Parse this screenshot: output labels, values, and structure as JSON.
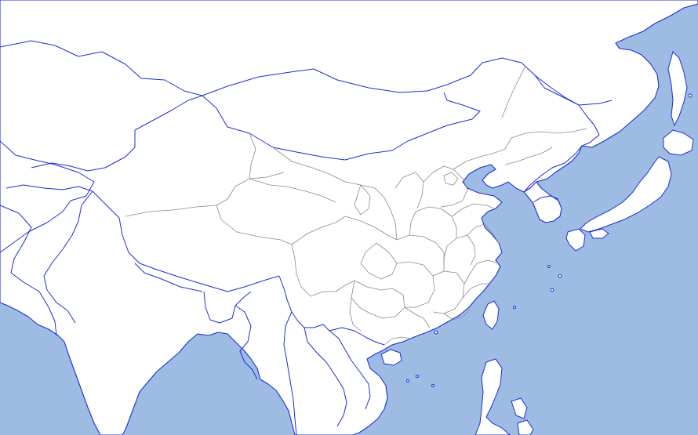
{
  "map": {
    "region": "East Asia",
    "style": "outline blank map",
    "labels_shown": false
  },
  "colors": {
    "water": "#9dbbe3",
    "land": "#ffffff",
    "country_border": "#1b2fd6",
    "province_border": "#8a8a8a"
  }
}
